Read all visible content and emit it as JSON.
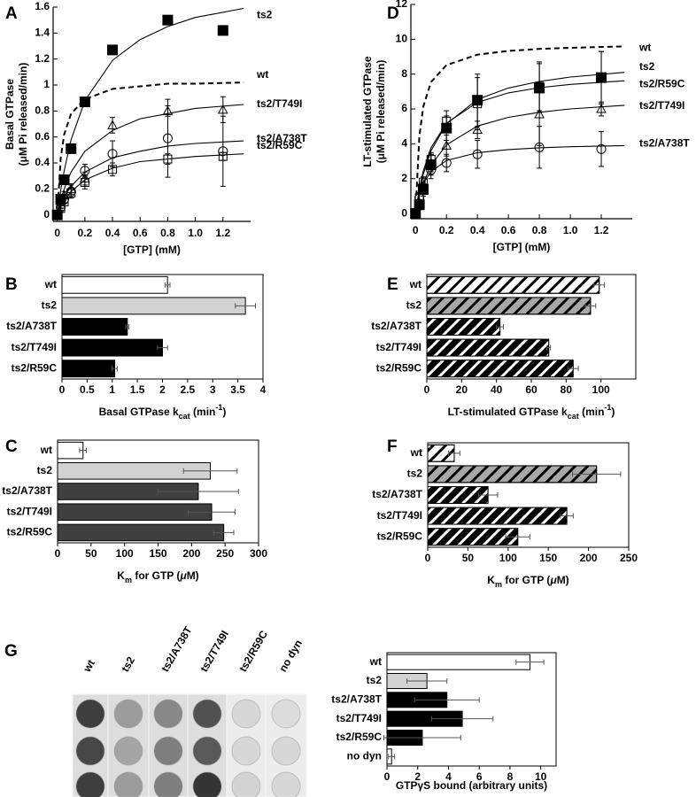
{
  "chart_data": [
    {
      "type": "scatter",
      "panel": "A",
      "ylabel": [
        "Basal GTPase",
        "(μM Pi released/min)"
      ],
      "xlabel": "[GTP] (mM)",
      "xlim": [
        -0.03,
        1.4
      ],
      "ylim": [
        -0.05,
        1.6
      ],
      "xticks": [
        0,
        0.2,
        0.4,
        0.6,
        0.8,
        {
          "value": 1,
          "label": "1.0"
        },
        1.2
      ],
      "yticks": [
        0,
        0.2,
        0.4,
        0.6,
        0.8,
        1,
        1.2,
        1.4,
        1.6
      ],
      "x": [
        0,
        0.025,
        0.05,
        0.1,
        0.2,
        0.4,
        0.8,
        1.2
      ],
      "fit_x": [
        0,
        0.025,
        0.05,
        0.1,
        0.2,
        0.4,
        0.6,
        0.8,
        1,
        1.35
      ],
      "series": [
        {
          "name": "ts2",
          "marker": "filled-square",
          "values": [
            0,
            0.12,
            0.27,
            0.51,
            0.87,
            1.27,
            1.5,
            1.42
          ],
          "fit": [
            0,
            0.19,
            0.34,
            0.58,
            0.88,
            1.19,
            1.35,
            1.45,
            1.52,
            1.59
          ]
        },
        {
          "name": "wt",
          "dashed": true,
          "fit": [
            0,
            0.44,
            0.62,
            0.78,
            0.89,
            0.97,
            0.99,
            1.01,
            1.01,
            1.02
          ]
        },
        {
          "name": "ts2/T749I",
          "marker": "open-triangle",
          "values": [
            0,
            0.08,
            0.15,
            0.2,
            0.28,
            0.69,
            0.8,
            0.81
          ],
          "errors": [
            0,
            0.03,
            0.03,
            0.04,
            0.05,
            0.06,
            0.04,
            0.1
          ],
          "fit": [
            0,
            0.11,
            0.2,
            0.33,
            0.49,
            0.65,
            0.74,
            0.78,
            0.82,
            0.85
          ]
        },
        {
          "name": "ts2/A738T",
          "marker": "open-circle",
          "values": [
            0,
            0.06,
            0.12,
            0.18,
            0.34,
            0.47,
            0.59,
            0.49
          ],
          "errors": [
            0,
            0.03,
            0.03,
            0.05,
            0.05,
            0.1,
            0.3,
            0.27
          ],
          "fit": [
            0,
            0.08,
            0.14,
            0.22,
            0.33,
            0.44,
            0.49,
            0.53,
            0.55,
            0.57
          ]
        },
        {
          "name": "ts2/R59C",
          "marker": "open-square",
          "values": [
            0,
            0.05,
            0.1,
            0.17,
            0.25,
            0.35,
            0.43,
            0.45
          ],
          "errors": [
            0,
            0.02,
            0.03,
            0.04,
            0.05,
            0.05,
            0.04,
            0.03
          ],
          "fit": [
            0,
            0.06,
            0.11,
            0.18,
            0.27,
            0.36,
            0.41,
            0.43,
            0.45,
            0.47
          ]
        }
      ]
    },
    {
      "type": "barh",
      "panel": "B",
      "xlabel": [
        "Basal GTPase k",
        "cat",
        " (min",
        "-1",
        ")"
      ],
      "categories": [
        "wt",
        "ts2",
        "ts2/A738T",
        "ts2/T749I",
        "ts2/R59C"
      ],
      "values": [
        2.1,
        3.65,
        1.3,
        2.0,
        1.05
      ],
      "errors": [
        0.05,
        0.2,
        0.03,
        0.1,
        0.05
      ],
      "colors": [
        "#ffffff",
        "#d2d2d2",
        "#000000",
        "#000000",
        "#000000"
      ],
      "xlim": [
        0,
        4
      ],
      "xticks": [
        0,
        0.5,
        1,
        1.5,
        2,
        2.5,
        3,
        3.5,
        4
      ]
    },
    {
      "type": "barh",
      "panel": "C",
      "xlabel": [
        "K",
        "m",
        " for GTP (",
        "μ",
        "M)"
      ],
      "categories": [
        "wt",
        "ts2",
        "ts2/A738T",
        "ts2/T749I",
        "ts2/R59C"
      ],
      "values": [
        38,
        228,
        210,
        230,
        248
      ],
      "errors": [
        5,
        40,
        60,
        35,
        15
      ],
      "colors": [
        "#ffffff",
        "#d2d2d2",
        "#404040",
        "#404040",
        "#404040"
      ],
      "xlim": [
        0,
        300
      ],
      "xticks": [
        0,
        50,
        100,
        150,
        200,
        250,
        300
      ]
    },
    {
      "type": "scatter",
      "panel": "D",
      "ylabel": [
        "LT-stimulated  GTPase",
        "(μM Pi released/min)"
      ],
      "xlabel": "[GTP] (mM)",
      "xlim": [
        -0.03,
        1.4
      ],
      "ylim": [
        -0.3,
        12
      ],
      "xticks": [
        0,
        0.2,
        0.4,
        0.6,
        0.8,
        {
          "value": 1,
          "label": "1.0"
        },
        1.2
      ],
      "yticks": [
        0,
        2,
        4,
        6,
        8,
        10,
        12
      ],
      "x": [
        0,
        0.025,
        0.05,
        0.1,
        0.2,
        0.4,
        0.8,
        1.2
      ],
      "fit_x": [
        0,
        0.025,
        0.05,
        0.1,
        0.2,
        0.4,
        0.6,
        0.8,
        1,
        1.35
      ],
      "series": [
        {
          "name": "wt",
          "dashed": true,
          "fit": [
            0,
            4.45,
            6.13,
            7.54,
            8.52,
            9.12,
            9.33,
            9.45,
            9.51,
            9.59
          ]
        },
        {
          "name": "ts2",
          "marker": "filled-square",
          "values": [
            0,
            0.5,
            1.4,
            2.8,
            4.9,
            6.5,
            7.2,
            7.8
          ],
          "errors": [
            0,
            0.2,
            0.3,
            0.6,
            0.7,
            1.5,
            1.4,
            1.5
          ],
          "fit": [
            0,
            1.29,
            2.25,
            3.6,
            5.14,
            6.55,
            7.2,
            7.58,
            7.83,
            8.1
          ]
        },
        {
          "name": "ts2/R59C",
          "marker": "open-square",
          "values": [
            0,
            0.9,
            1.8,
            3.1,
            5.3,
            6.3,
            7.3,
            7.8
          ],
          "errors": [
            0,
            0.3,
            0.3,
            0.4,
            0.6,
            1.5,
            1.4,
            1.5
          ],
          "fit": [
            0,
            1.43,
            2.44,
            3.77,
            5.19,
            6.38,
            6.92,
            7.22,
            7.41,
            7.62
          ]
        },
        {
          "name": "ts2/T749I",
          "marker": "open-triangle",
          "values": [
            0,
            0.6,
            1.3,
            2.9,
            3.9,
            4.8,
            5.7,
            6.0
          ],
          "errors": [
            0,
            0.2,
            0.3,
            0.5,
            0.6,
            0.5,
            1.8,
            0.4
          ],
          "fit": [
            0,
            0.99,
            1.73,
            2.76,
            3.94,
            5.02,
            5.52,
            5.81,
            6.0,
            6.21
          ]
        },
        {
          "name": "ts2/A738T",
          "marker": "open-circle",
          "values": [
            0,
            0.9,
            1.5,
            2.5,
            2.9,
            3.4,
            3.8,
            3.7
          ],
          "errors": [
            0,
            0.2,
            0.3,
            0.5,
            0.5,
            0.8,
            1.2,
            1.0
          ],
          "fit": [
            0,
            1.08,
            1.71,
            2.41,
            3.04,
            3.49,
            3.67,
            3.77,
            3.83,
            3.9
          ]
        }
      ]
    },
    {
      "type": "barh",
      "panel": "E",
      "xlabel": [
        "LT-stimulated GTPase k",
        "cat",
        " (min",
        "-1",
        ")"
      ],
      "hatch": true,
      "categories": [
        "wt",
        "ts2",
        "ts2/A738T",
        "ts2/T749I",
        "ts2/R59C"
      ],
      "values": [
        99,
        94,
        42,
        70,
        84
      ],
      "errors": [
        3,
        3,
        2,
        1,
        3
      ],
      "colors": [
        "#ffffff",
        "#a8a8a8",
        "#000000",
        "#000000",
        "#000000"
      ],
      "xlim": [
        0,
        120
      ],
      "xticks": [
        0,
        20,
        40,
        60,
        80,
        100
      ]
    },
    {
      "type": "barh",
      "panel": "F",
      "xlabel": [
        "K",
        "m",
        " for GTP (",
        "μ",
        "M)"
      ],
      "hatch": true,
      "categories": [
        "wt",
        "ts2",
        "ts2/A738T",
        "ts2/T749I",
        "ts2/R59C"
      ],
      "values": [
        33,
        210,
        75,
        173,
        112
      ],
      "errors": [
        7,
        30,
        12,
        8,
        15
      ],
      "colors": [
        "#ffffff",
        "#a8a8a8",
        "#000000",
        "#000000",
        "#000000"
      ],
      "xlim": [
        0,
        250
      ],
      "xticks": [
        0,
        50,
        100,
        150,
        200,
        250
      ]
    },
    {
      "type": "barh",
      "panel": "G",
      "xlabel": [
        "GTPγS bound (arbitrary units)"
      ],
      "categories": [
        "wt",
        "ts2",
        "ts2/A738T",
        "ts2/T749I",
        "ts2/R59C",
        "no dyn"
      ],
      "values": [
        9.3,
        2.6,
        3.9,
        4.9,
        2.3,
        0.3
      ],
      "errors": [
        0.9,
        1.3,
        2.1,
        2.0,
        2.5,
        0.2
      ],
      "colors": [
        "#ffffff",
        "#d2d2d2",
        "#000000",
        "#000000",
        "#000000",
        "#ffffff"
      ],
      "xlim": [
        0,
        11
      ],
      "xticks": [
        0,
        2,
        4,
        6,
        8,
        10
      ]
    }
  ],
  "blot": {
    "lanes": [
      "wt",
      "ts2",
      "ts2/A738T",
      "ts2/T749I",
      "ts2/R59C",
      "no dyn"
    ]
  }
}
